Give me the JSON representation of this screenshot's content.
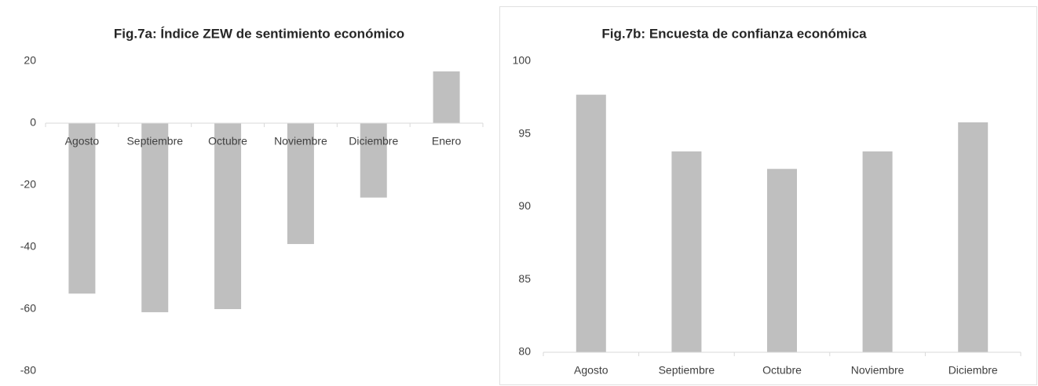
{
  "chart_data": [
    {
      "type": "bar",
      "title": "Fig.7a: Índice ZEW de sentimiento económico",
      "categories": [
        "Agosto",
        "Septiembre",
        "Octubre",
        "Noviembre",
        "Diciembre",
        "Enero"
      ],
      "values": [
        -55,
        -61,
        -60,
        -39,
        -24,
        16.7
      ],
      "color": "#bfbfbf",
      "ylim": [
        -80,
        20
      ],
      "yticks": [
        -80,
        -60,
        -40,
        -20,
        0,
        20
      ],
      "grid": false
    },
    {
      "type": "bar",
      "title": "Fig.7b: Encuesta de confianza económica",
      "categories": [
        "Agosto",
        "Septiembre",
        "Octubre",
        "Noviembre",
        "Diciembre"
      ],
      "values": [
        97.7,
        93.8,
        92.6,
        93.8,
        95.8
      ],
      "color": "#bfbfbf",
      "ylim": [
        80,
        100
      ],
      "yticks": [
        80,
        85,
        90,
        95,
        100
      ],
      "grid": false
    }
  ]
}
